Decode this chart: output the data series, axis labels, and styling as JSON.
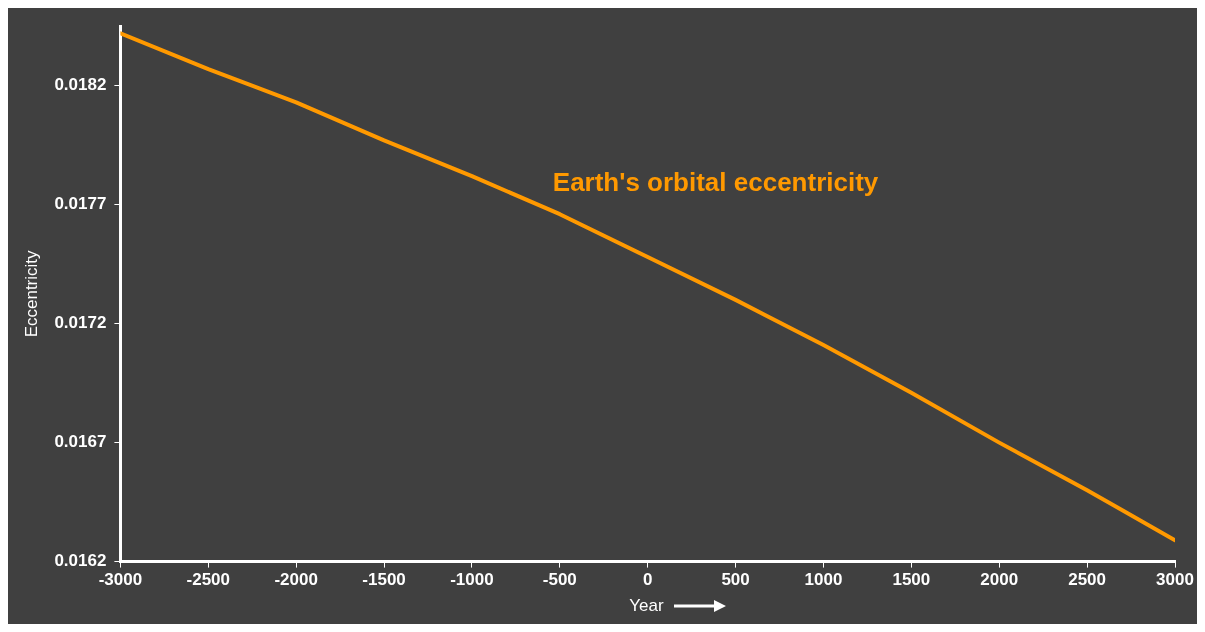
{
  "chart_data": {
    "type": "line",
    "xlabel": "Year",
    "ylabel": "Eccentricity",
    "xlim": [
      -3000,
      3000
    ],
    "xticks": [
      -3000,
      -2500,
      -2000,
      -1500,
      -1000,
      -500,
      0,
      500,
      1000,
      1500,
      2000,
      2500,
      3000
    ],
    "ylim": [
      0.0162,
      0.01845
    ],
    "yticks": [
      0.0162,
      0.0167,
      0.0172,
      0.0177,
      0.0182
    ],
    "grid": false,
    "legend": false,
    "marker": "none",
    "line_style": "solid",
    "series": [
      {
        "name": "Earth's orbital eccentricity",
        "color": "#ff9900",
        "x": [
          -3000,
          -2500,
          -2000,
          -1500,
          -1000,
          -500,
          0,
          500,
          1000,
          1500,
          2000,
          2500,
          3000
        ],
        "values": [
          0.01842,
          0.01827,
          0.01813,
          0.01797,
          0.01782,
          0.01766,
          0.01748,
          0.0173,
          0.01711,
          0.01691,
          0.0167,
          0.0165,
          0.01629
        ]
      }
    ]
  }
}
